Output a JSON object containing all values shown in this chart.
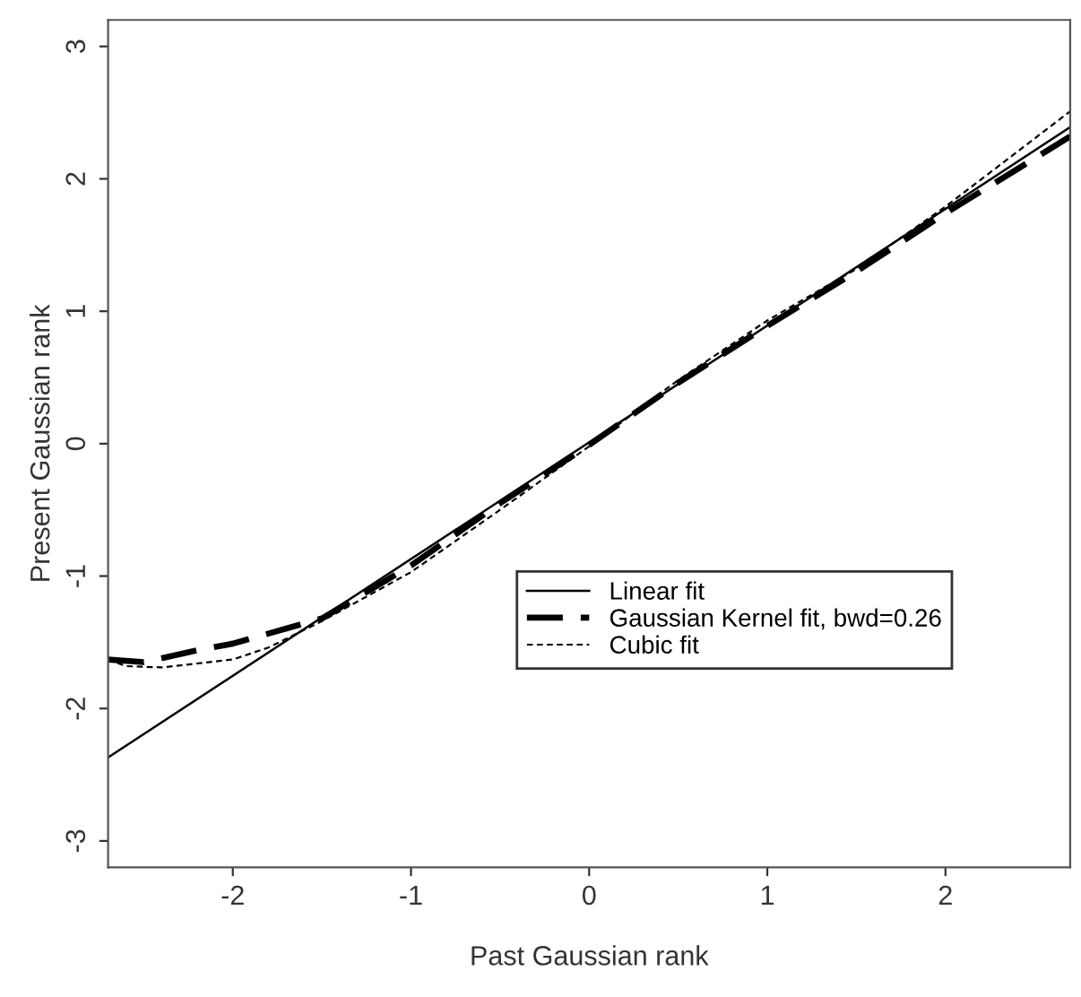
{
  "chart_data": {
    "type": "line",
    "xlabel": "Past Gaussian rank",
    "ylabel": "Present Gaussian rank",
    "xlim": [
      -2.7,
      2.7
    ],
    "ylim": [
      -3.2,
      3.2
    ],
    "xticks": [
      -2,
      -1,
      0,
      1,
      2
    ],
    "yticks": [
      -3,
      -2,
      -1,
      0,
      1,
      2,
      3
    ],
    "grid": false,
    "legend": "lower right",
    "marker": "none",
    "series": [
      {
        "name": "Linear fit",
        "color": "#000000",
        "line_style": "solid",
        "x": [
          -2.7,
          2.7
        ],
        "values": [
          -2.37,
          2.39
        ]
      },
      {
        "name": "Gaussian Kernel fit, bwd=0.26",
        "color": "#000000",
        "line_style": "dashed",
        "x": [
          -2.7,
          -2.5,
          -2.2,
          -2,
          -1.5,
          -1,
          -0.5,
          0,
          0.5,
          1,
          1.5,
          2,
          2.7
        ],
        "values": [
          -1.63,
          -1.65,
          -1.56,
          -1.51,
          -1.32,
          -0.92,
          -0.45,
          -0.01,
          0.46,
          0.89,
          1.3,
          1.74,
          2.32
        ]
      },
      {
        "name": "Cubic fit",
        "color": "#000000",
        "line_style": "dashed",
        "x": [
          -2.7,
          -2.6,
          -2.4,
          -2.2,
          -2,
          -1.8,
          -1.5,
          -1,
          -0.5,
          0,
          0.5,
          1,
          1.5,
          2,
          2.7
        ],
        "values": [
          -1.63,
          -1.68,
          -1.69,
          -1.66,
          -1.63,
          -1.54,
          -1.34,
          -0.97,
          -0.5,
          -0.02,
          0.48,
          0.93,
          1.32,
          1.79,
          2.51
        ]
      }
    ]
  }
}
